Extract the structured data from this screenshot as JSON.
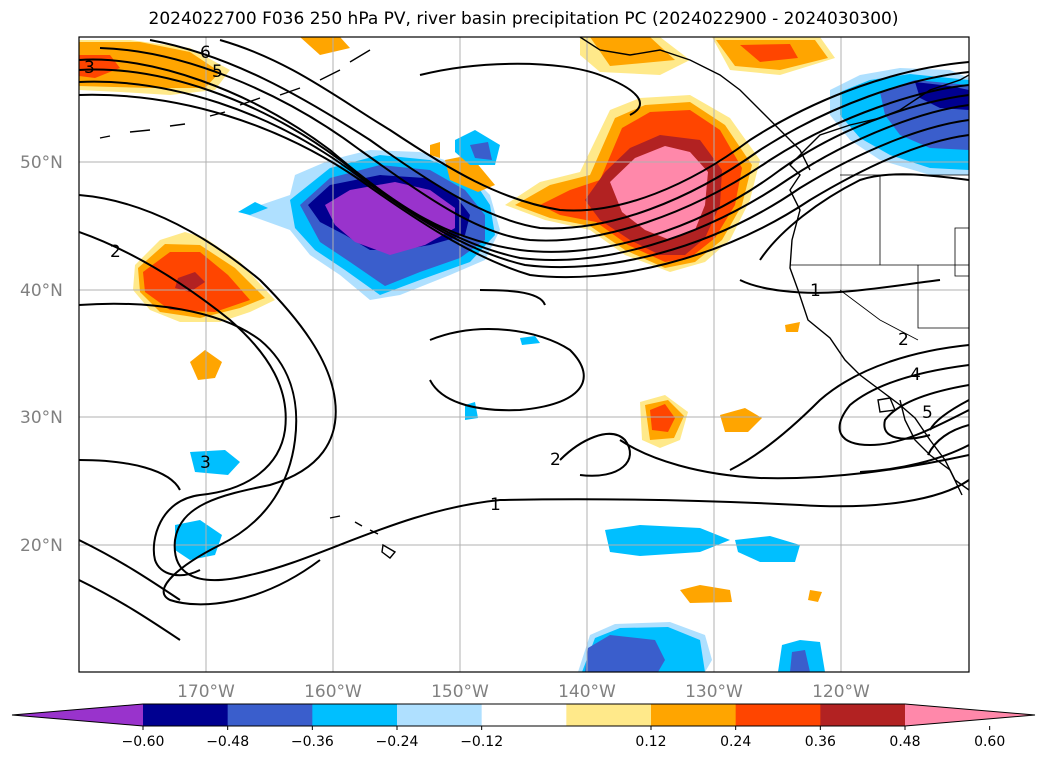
{
  "title": "2024022700 F036 250 hPa PV, river basin precipitation PC (2024022900 - 2024030300)",
  "lat_labels": [
    "50°N",
    "40°N",
    "30°N",
    "20°N"
  ],
  "lon_labels": [
    "170°W",
    "160°W",
    "150°W",
    "140°W",
    "130°W",
    "120°W"
  ],
  "contour_labels": [
    "6",
    "5",
    "3",
    "2",
    "1",
    "1",
    "3",
    "2",
    "2",
    "4",
    "5"
  ],
  "colorbar": {
    "ticks": [
      "−0.60",
      "−0.48",
      "−0.36",
      "−0.24",
      "−0.12",
      "0.12",
      "0.24",
      "0.36",
      "0.48",
      "0.60"
    ],
    "colors": [
      "#9933cc",
      "#000090",
      "#3a5ecc",
      "#00bfff",
      "#afe0ff",
      "#ffffff",
      "#ffe98a",
      "#ffa500",
      "#ff4500",
      "#b22222",
      "#ff88aa"
    ]
  }
}
